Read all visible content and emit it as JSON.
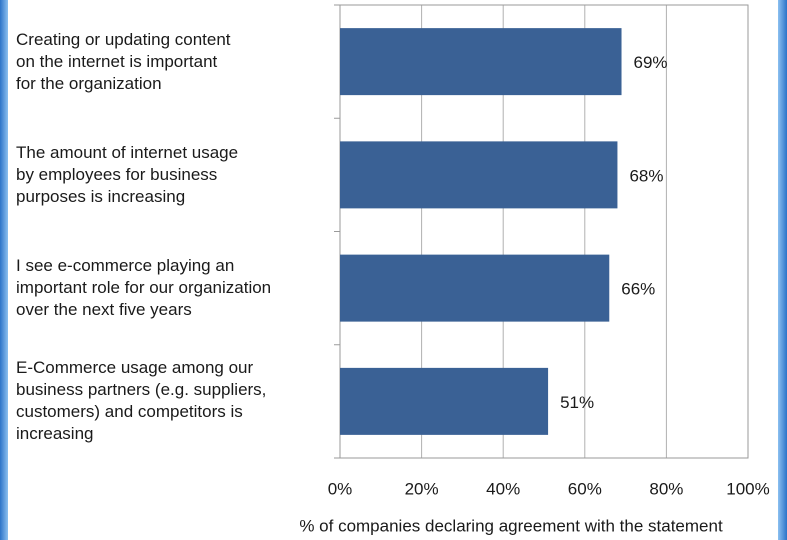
{
  "chart_data": {
    "type": "bar",
    "orientation": "horizontal",
    "categories": [
      "Creating or updating content\non the internet is important\nfor the organization",
      "The amount of internet usage\nby employees for business\npurposes is increasing",
      "I see e-commerce playing an\nimportant role for our organization\nover the next five years",
      "E-Commerce usage among our\nbusiness partners (e.g. suppliers,\ncustomers) and competitors is\nincreasing"
    ],
    "values": [
      69,
      68,
      66,
      51
    ],
    "value_labels": [
      "69%",
      "68%",
      "66%",
      "51%"
    ],
    "color": "#3a6195",
    "xlim": [
      0,
      100
    ],
    "xticks": [
      {
        "value": 0,
        "label": "0%"
      },
      {
        "value": 20,
        "label": "20%"
      },
      {
        "value": 40,
        "label": "40%"
      },
      {
        "value": 60,
        "label": "60%"
      },
      {
        "value": 80,
        "label": "80%"
      },
      {
        "value": 100,
        "label": "100%"
      }
    ],
    "xlabel": "% of companies declaring agreement with the statement",
    "grid": true
  }
}
